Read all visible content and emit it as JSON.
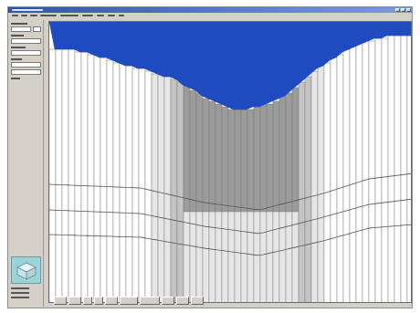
{
  "window": {
    "title": ""
  },
  "menu": {
    "items": [
      "",
      "",
      "",
      "",
      "",
      "",
      "",
      "",
      ""
    ]
  },
  "panel": {
    "fields": [
      "",
      "",
      "",
      "",
      "",
      "",
      ""
    ],
    "status": [
      "",
      "",
      ""
    ]
  },
  "toolbar": {
    "buttons": [
      "",
      "",
      "",
      "",
      "",
      "",
      "",
      "",
      "",
      ""
    ]
  },
  "colors": {
    "water": "#1e4bc0",
    "titlebar": "#2d55a8",
    "panel": "#d4d0c8",
    "shade_dark": "#9b9b9b",
    "shade_mid": "#c4c4c4",
    "shade_light": "#e6e6e6",
    "layer_line": "#555555"
  },
  "icons": {
    "thumbnail": "3d-cube-preview-icon"
  }
}
